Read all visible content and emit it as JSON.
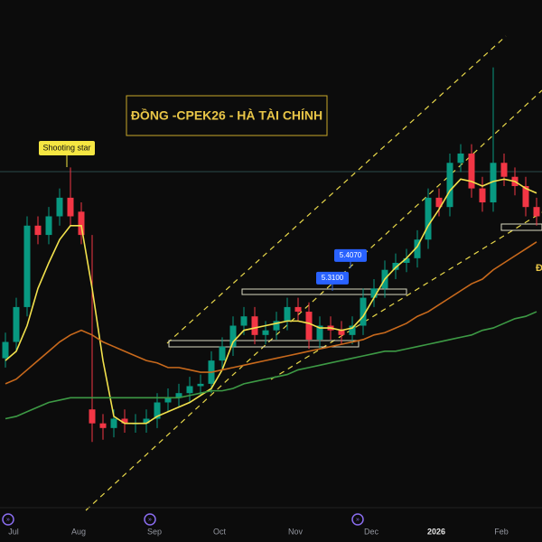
{
  "chart_data": {
    "type": "candlestick",
    "title": "ĐỒNG -CPEK26 - HÀ TÀI CHÍNH",
    "categories": [
      null,
      "Jul",
      null,
      null,
      null,
      null,
      null,
      "Aug",
      null,
      null,
      null,
      null,
      null,
      null,
      "Sep",
      null,
      null,
      null,
      null,
      null,
      "Oct",
      null,
      null,
      null,
      null,
      null,
      null,
      "Nov",
      null,
      null,
      null,
      null,
      null,
      null,
      "Dec",
      null,
      null,
      null,
      null,
      null,
      "2026",
      null,
      null,
      null,
      null,
      null,
      "Feb",
      null,
      null,
      null
    ],
    "open": [
      5.02,
      5.09,
      5.24,
      5.59,
      5.55,
      5.63,
      5.71,
      5.65,
      4.8,
      4.74,
      4.72,
      4.76,
      4.74,
      4.74,
      4.76,
      4.83,
      4.85,
      4.87,
      4.9,
      4.91,
      5.01,
      5.07,
      5.16,
      5.2,
      5.12,
      5.14,
      5.18,
      5.24,
      5.22,
      5.1,
      5.16,
      5.14,
      5.12,
      5.16,
      5.28,
      5.32,
      5.4,
      5.43,
      5.45,
      5.53,
      5.71,
      5.67,
      5.86,
      5.9,
      5.75,
      5.69,
      5.86,
      5.8,
      5.76,
      5.67
    ],
    "high": [
      5.13,
      5.28,
      5.63,
      5.63,
      5.67,
      5.75,
      5.84,
      5.69,
      5.55,
      4.78,
      4.8,
      4.8,
      4.78,
      4.8,
      4.87,
      4.89,
      4.91,
      4.94,
      4.95,
      5.05,
      5.11,
      5.2,
      5.24,
      5.24,
      5.18,
      5.22,
      5.28,
      5.28,
      5.26,
      5.2,
      5.2,
      5.18,
      5.2,
      5.32,
      5.36,
      5.44,
      5.47,
      5.49,
      5.57,
      5.75,
      5.75,
      5.9,
      5.94,
      5.94,
      5.8,
      6.27,
      5.9,
      5.84,
      5.8,
      5.71
    ],
    "low": [
      4.98,
      5.05,
      5.2,
      5.51,
      5.51,
      5.59,
      5.59,
      5.51,
      4.66,
      4.67,
      4.68,
      4.7,
      4.7,
      4.7,
      4.72,
      4.79,
      4.81,
      4.83,
      4.86,
      4.87,
      4.97,
      5.03,
      5.12,
      5.08,
      5.08,
      5.1,
      5.14,
      5.18,
      5.06,
      5.06,
      5.1,
      5.08,
      5.08,
      5.12,
      5.24,
      5.28,
      5.36,
      5.39,
      5.41,
      5.49,
      5.63,
      5.63,
      5.82,
      5.71,
      5.65,
      5.65,
      5.76,
      5.72,
      5.63,
      5.59
    ],
    "close": [
      5.09,
      5.24,
      5.59,
      5.55,
      5.63,
      5.71,
      5.63,
      5.55,
      4.74,
      4.72,
      4.76,
      4.74,
      4.74,
      4.76,
      4.83,
      4.85,
      4.87,
      4.9,
      4.91,
      5.01,
      5.07,
      5.16,
      5.2,
      5.12,
      5.14,
      5.18,
      5.24,
      5.22,
      5.1,
      5.16,
      5.14,
      5.12,
      5.16,
      5.28,
      5.32,
      5.4,
      5.43,
      5.45,
      5.53,
      5.71,
      5.67,
      5.86,
      5.9,
      5.75,
      5.69,
      5.86,
      5.8,
      5.76,
      5.67,
      5.63
    ],
    "up_color": "#089981",
    "down_color": "#f23645",
    "lines": [
      {
        "color": "#f2e14c",
        "values": [
          5.01,
          5.05,
          5.16,
          5.32,
          5.43,
          5.53,
          5.59,
          5.59,
          5.32,
          5.01,
          4.77,
          4.74,
          4.74,
          4.74,
          4.77,
          4.79,
          4.81,
          4.83,
          4.86,
          4.89,
          4.97,
          5.09,
          5.14,
          5.15,
          5.16,
          5.17,
          5.18,
          5.18,
          5.17,
          5.15,
          5.15,
          5.14,
          5.15,
          5.2,
          5.28,
          5.36,
          5.41,
          5.45,
          5.5,
          5.59,
          5.66,
          5.74,
          5.79,
          5.78,
          5.76,
          5.78,
          5.79,
          5.78,
          5.75,
          5.73
        ]
      },
      {
        "color": "#c8691c",
        "values": [
          4.91,
          4.93,
          4.97,
          5.01,
          5.05,
          5.09,
          5.12,
          5.14,
          5.12,
          5.09,
          5.07,
          5.05,
          5.03,
          5.01,
          5.0,
          4.98,
          4.98,
          4.97,
          4.96,
          4.96,
          4.97,
          4.98,
          4.99,
          5.0,
          5.01,
          5.02,
          5.03,
          5.04,
          5.05,
          5.06,
          5.07,
          5.08,
          5.09,
          5.1,
          5.12,
          5.13,
          5.15,
          5.17,
          5.2,
          5.22,
          5.25,
          5.28,
          5.31,
          5.34,
          5.36,
          5.4,
          5.43,
          5.46,
          5.49,
          5.52
        ]
      },
      {
        "color": "#3d9a45",
        "values": [
          4.76,
          4.77,
          4.79,
          4.81,
          4.83,
          4.84,
          4.85,
          4.85,
          4.85,
          4.85,
          4.85,
          4.85,
          4.85,
          4.85,
          4.85,
          4.85,
          4.85,
          4.86,
          4.87,
          4.88,
          4.88,
          4.89,
          4.91,
          4.92,
          4.93,
          4.94,
          4.95,
          4.97,
          4.98,
          4.99,
          5.0,
          5.01,
          5.02,
          5.03,
          5.04,
          5.05,
          5.05,
          5.06,
          5.07,
          5.08,
          5.09,
          5.1,
          5.11,
          5.12,
          5.14,
          5.15,
          5.17,
          5.19,
          5.2,
          5.22
        ]
      }
    ],
    "ylim": [
      4.23,
      6.56
    ],
    "annotations": [
      "Shooting star",
      "Đ"
    ],
    "price_labels": [
      {
        "value": 5.407,
        "label": "5.4070"
      },
      {
        "value": 5.31,
        "label": "5.3100"
      }
    ]
  }
}
